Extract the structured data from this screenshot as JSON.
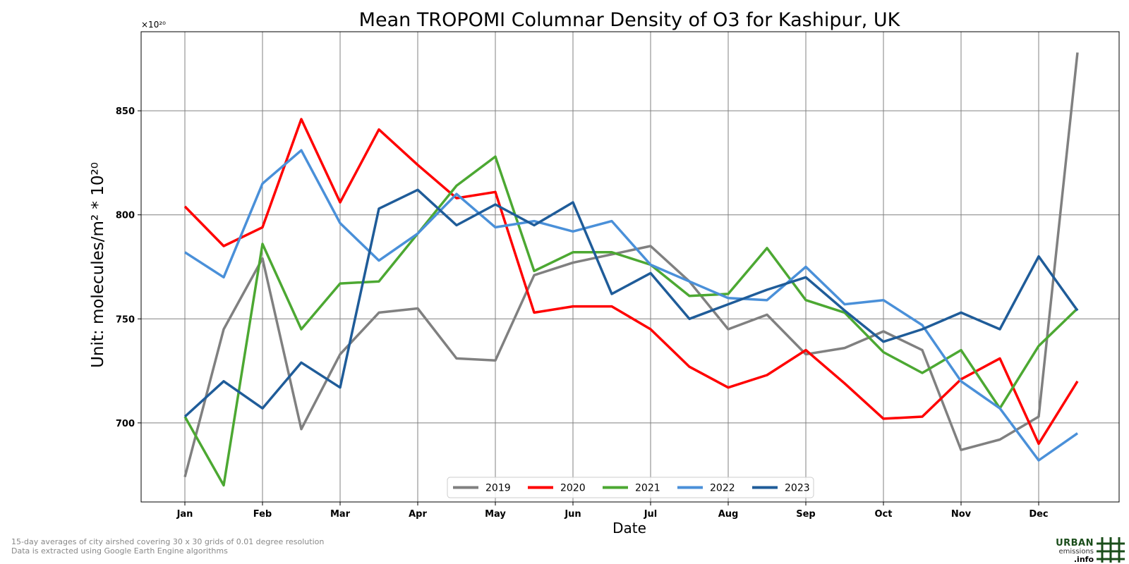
{
  "chart_data": {
    "type": "line",
    "title": "Mean TROPOMI Columnar Density of O3 for Kashipur, UK",
    "xlabel": "Date",
    "ylabel": "Unit: molecules/m² * 10²⁰",
    "y_multiplier": "×10²⁰",
    "ylim": [
      662,
      888
    ],
    "yticks": [
      700,
      750,
      800,
      850
    ],
    "grid": true,
    "legend_position": "bottom-center",
    "x": [
      "Jan 1",
      "Jan 16",
      "Feb 1",
      "Feb 16",
      "Mar 1",
      "Mar 16",
      "Apr 1",
      "Apr 16",
      "May 1",
      "May 16",
      "Jun 1",
      "Jun 16",
      "Jul 1",
      "Jul 16",
      "Aug 1",
      "Aug 16",
      "Sep 1",
      "Sep 16",
      "Oct 1",
      "Oct 16",
      "Nov 1",
      "Nov 16",
      "Dec 1",
      "Dec 16"
    ],
    "xtick_labels": [
      "Jan",
      "Feb",
      "Mar",
      "Apr",
      "May",
      "Jun",
      "Jul",
      "Aug",
      "Sep",
      "Oct",
      "Nov",
      "Dec"
    ],
    "series": [
      {
        "name": "2019",
        "color": "#808080",
        "values": [
          674,
          745,
          779,
          697,
          733,
          753,
          755,
          731,
          730,
          771,
          777,
          781,
          785,
          768,
          745,
          752,
          733,
          736,
          744,
          735,
          687,
          692,
          703,
          878
        ]
      },
      {
        "name": "2020",
        "color": "#ff0000",
        "values": [
          804,
          785,
          794,
          846,
          806,
          841,
          824,
          808,
          811,
          753,
          756,
          756,
          745,
          727,
          717,
          723,
          735,
          719,
          702,
          703,
          721,
          731,
          690,
          720
        ]
      },
      {
        "name": "2021",
        "color": "#4ca832",
        "values": [
          703,
          670,
          786,
          745,
          767,
          768,
          791,
          814,
          828,
          773,
          782,
          782,
          776,
          761,
          762,
          784,
          759,
          753,
          734,
          724,
          735,
          707,
          737,
          755
        ]
      },
      {
        "name": "2022",
        "color": "#4a90d9",
        "values": [
          782,
          770,
          815,
          831,
          796,
          778,
          791,
          810,
          794,
          797,
          792,
          797,
          776,
          768,
          760,
          759,
          775,
          757,
          759,
          747,
          720,
          707,
          682,
          695
        ]
      },
      {
        "name": "2023",
        "color": "#1f5c99",
        "values": [
          703,
          720,
          707,
          729,
          717,
          803,
          812,
          795,
          805,
          795,
          806,
          762,
          772,
          750,
          757,
          764,
          770,
          754,
          739,
          745,
          753,
          745,
          780,
          754
        ]
      }
    ]
  },
  "footnotes": [
    "15-day averages of city airshed covering 30 x 30 grids of 0.01 degree resolution",
    "Data is extracted using Google Earth Engine algorithms"
  ],
  "logo": {
    "line1": "URBAN",
    "line2": "emissions",
    "line3": ".info",
    "color": "#1a4d1a"
  }
}
